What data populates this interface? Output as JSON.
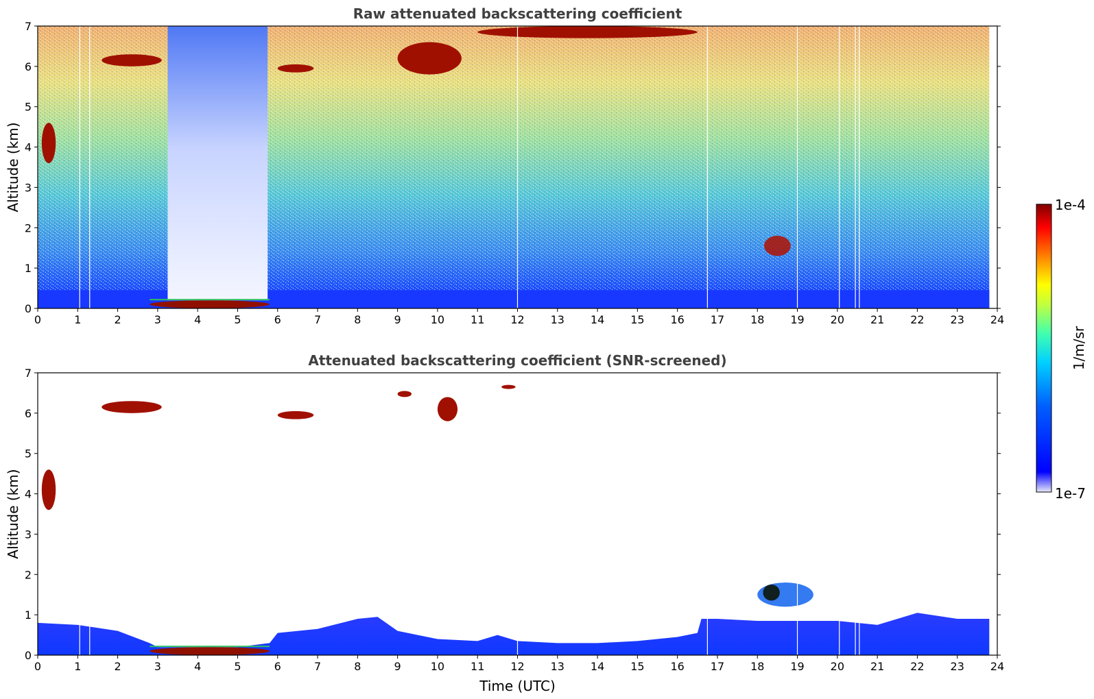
{
  "chart_data": [
    {
      "type": "heatmap",
      "title": "Raw attenuated backscattering coefficient",
      "xlabel": "",
      "ylabel": "Altitude (km)",
      "xlim": [
        0,
        24
      ],
      "ylim": [
        0,
        7
      ],
      "xticks": [
        "0",
        "1",
        "2",
        "3",
        "4",
        "5",
        "6",
        "7",
        "8",
        "9",
        "10",
        "11",
        "12",
        "13",
        "14",
        "15",
        "16",
        "17",
        "18",
        "19",
        "20",
        "21",
        "22",
        "23",
        "24"
      ],
      "yticks": [
        "0",
        "1",
        "2",
        "3",
        "4",
        "5",
        "6",
        "7"
      ],
      "colorscale": "jet (log)",
      "features": [
        {
          "kind": "boundary_layer",
          "x": [
            0,
            23.8
          ],
          "y_top": 0.45
        },
        {
          "kind": "low_signal_block",
          "x": [
            3.25,
            5.75
          ],
          "y": [
            0.2,
            7
          ]
        },
        {
          "kind": "cloud",
          "x": [
            1.6,
            3.1
          ],
          "y": [
            6.0,
            6.3
          ]
        },
        {
          "kind": "cloud",
          "x": [
            6.0,
            6.9
          ],
          "y": [
            5.85,
            6.05
          ]
        },
        {
          "kind": "cloud",
          "x": [
            9.0,
            10.6
          ],
          "y": [
            5.8,
            6.6
          ]
        },
        {
          "kind": "cloud",
          "x": [
            11.0,
            16.5
          ],
          "y": [
            6.7,
            7.0
          ]
        },
        {
          "kind": "cloud",
          "x": [
            0.1,
            0.45
          ],
          "y": [
            3.6,
            4.6
          ]
        },
        {
          "kind": "cloud",
          "x": [
            18.0,
            19.0
          ],
          "y": [
            1.3,
            1.8
          ]
        },
        {
          "kind": "fog_layer",
          "x": [
            2.8,
            5.8
          ],
          "y": [
            0.0,
            0.2
          ]
        }
      ]
    },
    {
      "type": "heatmap",
      "title": "Attenuated backscattering coefficient (SNR-screened)",
      "xlabel": "Time (UTC)",
      "ylabel": "Altitude (km)",
      "xlim": [
        0,
        24
      ],
      "ylim": [
        0,
        7
      ],
      "xticks": [
        "0",
        "1",
        "2",
        "3",
        "4",
        "5",
        "6",
        "7",
        "8",
        "9",
        "10",
        "11",
        "12",
        "13",
        "14",
        "15",
        "16",
        "17",
        "18",
        "19",
        "20",
        "21",
        "22",
        "23",
        "24"
      ],
      "yticks": [
        "0",
        "1",
        "2",
        "3",
        "4",
        "5",
        "6",
        "7"
      ],
      "colorscale": "jet (log)",
      "boundary_layer_top_km": {
        "x": [
          0,
          1,
          2,
          2.8,
          3,
          4,
          5,
          5.8,
          6,
          7,
          8,
          8.5,
          9,
          10,
          11,
          11.5,
          12,
          13,
          14,
          15,
          16,
          16.5,
          16.6,
          17,
          18,
          19,
          20,
          21,
          22,
          23,
          23.8
        ],
        "y": [
          0.8,
          0.75,
          0.6,
          0.3,
          0.2,
          0.2,
          0.2,
          0.3,
          0.55,
          0.65,
          0.9,
          0.95,
          0.6,
          0.4,
          0.35,
          0.5,
          0.35,
          0.3,
          0.3,
          0.35,
          0.45,
          0.55,
          0.9,
          0.9,
          0.85,
          0.85,
          0.85,
          0.75,
          1.05,
          0.9,
          0.9
        ]
      },
      "features": [
        {
          "kind": "cloud",
          "x": [
            1.6,
            3.1
          ],
          "y": [
            6.0,
            6.3
          ]
        },
        {
          "kind": "cloud",
          "x": [
            6.0,
            6.9
          ],
          "y": [
            5.85,
            6.05
          ]
        },
        {
          "kind": "cloud",
          "x": [
            9.0,
            9.35
          ],
          "y": [
            6.4,
            6.55
          ]
        },
        {
          "kind": "cloud",
          "x": [
            10.0,
            10.5
          ],
          "y": [
            5.8,
            6.4
          ]
        },
        {
          "kind": "cloud",
          "x": [
            11.6,
            11.95
          ],
          "y": [
            6.6,
            6.7
          ]
        },
        {
          "kind": "cloud",
          "x": [
            0.1,
            0.45
          ],
          "y": [
            3.6,
            4.6
          ]
        },
        {
          "kind": "cloud",
          "x": [
            18.0,
            19.4
          ],
          "y": [
            1.2,
            1.8
          ]
        },
        {
          "kind": "fog_layer",
          "x": [
            2.8,
            5.8
          ],
          "y": [
            0.0,
            0.2
          ]
        }
      ]
    }
  ],
  "colorbar": {
    "label": "1/m/sr",
    "max_label": "1e-4",
    "min_label": "1e-7",
    "stops": [
      "#e8e8f8",
      "#0000ff",
      "#00a0ff",
      "#00e0c0",
      "#80ff80",
      "#ffff00",
      "#ff8000",
      "#ff0000",
      "#800000"
    ]
  }
}
